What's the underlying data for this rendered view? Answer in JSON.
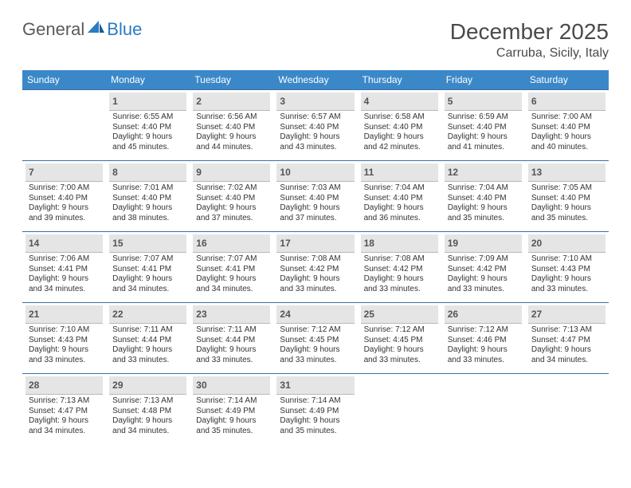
{
  "logo": {
    "general": "General",
    "blue": "Blue"
  },
  "header": {
    "title": "December 2025",
    "location": "Carruba, Sicily, Italy"
  },
  "colors": {
    "header_bg": "#3b88c9",
    "header_text": "#ffffff",
    "daynum_bg": "#e5e5e5",
    "cell_border": "#3b6ea0",
    "logo_blue": "#2a7bc4"
  },
  "days_of_week": [
    "Sunday",
    "Monday",
    "Tuesday",
    "Wednesday",
    "Thursday",
    "Friday",
    "Saturday"
  ],
  "start_offset": 1,
  "cells": [
    {
      "n": 1,
      "sr": "6:55 AM",
      "ss": "4:40 PM",
      "dl": "9 hours and 45 minutes."
    },
    {
      "n": 2,
      "sr": "6:56 AM",
      "ss": "4:40 PM",
      "dl": "9 hours and 44 minutes."
    },
    {
      "n": 3,
      "sr": "6:57 AM",
      "ss": "4:40 PM",
      "dl": "9 hours and 43 minutes."
    },
    {
      "n": 4,
      "sr": "6:58 AM",
      "ss": "4:40 PM",
      "dl": "9 hours and 42 minutes."
    },
    {
      "n": 5,
      "sr": "6:59 AM",
      "ss": "4:40 PM",
      "dl": "9 hours and 41 minutes."
    },
    {
      "n": 6,
      "sr": "7:00 AM",
      "ss": "4:40 PM",
      "dl": "9 hours and 40 minutes."
    },
    {
      "n": 7,
      "sr": "7:00 AM",
      "ss": "4:40 PM",
      "dl": "9 hours and 39 minutes."
    },
    {
      "n": 8,
      "sr": "7:01 AM",
      "ss": "4:40 PM",
      "dl": "9 hours and 38 minutes."
    },
    {
      "n": 9,
      "sr": "7:02 AM",
      "ss": "4:40 PM",
      "dl": "9 hours and 37 minutes."
    },
    {
      "n": 10,
      "sr": "7:03 AM",
      "ss": "4:40 PM",
      "dl": "9 hours and 37 minutes."
    },
    {
      "n": 11,
      "sr": "7:04 AM",
      "ss": "4:40 PM",
      "dl": "9 hours and 36 minutes."
    },
    {
      "n": 12,
      "sr": "7:04 AM",
      "ss": "4:40 PM",
      "dl": "9 hours and 35 minutes."
    },
    {
      "n": 13,
      "sr": "7:05 AM",
      "ss": "4:40 PM",
      "dl": "9 hours and 35 minutes."
    },
    {
      "n": 14,
      "sr": "7:06 AM",
      "ss": "4:41 PM",
      "dl": "9 hours and 34 minutes."
    },
    {
      "n": 15,
      "sr": "7:07 AM",
      "ss": "4:41 PM",
      "dl": "9 hours and 34 minutes."
    },
    {
      "n": 16,
      "sr": "7:07 AM",
      "ss": "4:41 PM",
      "dl": "9 hours and 34 minutes."
    },
    {
      "n": 17,
      "sr": "7:08 AM",
      "ss": "4:42 PM",
      "dl": "9 hours and 33 minutes."
    },
    {
      "n": 18,
      "sr": "7:08 AM",
      "ss": "4:42 PM",
      "dl": "9 hours and 33 minutes."
    },
    {
      "n": 19,
      "sr": "7:09 AM",
      "ss": "4:42 PM",
      "dl": "9 hours and 33 minutes."
    },
    {
      "n": 20,
      "sr": "7:10 AM",
      "ss": "4:43 PM",
      "dl": "9 hours and 33 minutes."
    },
    {
      "n": 21,
      "sr": "7:10 AM",
      "ss": "4:43 PM",
      "dl": "9 hours and 33 minutes."
    },
    {
      "n": 22,
      "sr": "7:11 AM",
      "ss": "4:44 PM",
      "dl": "9 hours and 33 minutes."
    },
    {
      "n": 23,
      "sr": "7:11 AM",
      "ss": "4:44 PM",
      "dl": "9 hours and 33 minutes."
    },
    {
      "n": 24,
      "sr": "7:12 AM",
      "ss": "4:45 PM",
      "dl": "9 hours and 33 minutes."
    },
    {
      "n": 25,
      "sr": "7:12 AM",
      "ss": "4:45 PM",
      "dl": "9 hours and 33 minutes."
    },
    {
      "n": 26,
      "sr": "7:12 AM",
      "ss": "4:46 PM",
      "dl": "9 hours and 33 minutes."
    },
    {
      "n": 27,
      "sr": "7:13 AM",
      "ss": "4:47 PM",
      "dl": "9 hours and 34 minutes."
    },
    {
      "n": 28,
      "sr": "7:13 AM",
      "ss": "4:47 PM",
      "dl": "9 hours and 34 minutes."
    },
    {
      "n": 29,
      "sr": "7:13 AM",
      "ss": "4:48 PM",
      "dl": "9 hours and 34 minutes."
    },
    {
      "n": 30,
      "sr": "7:14 AM",
      "ss": "4:49 PM",
      "dl": "9 hours and 35 minutes."
    },
    {
      "n": 31,
      "sr": "7:14 AM",
      "ss": "4:49 PM",
      "dl": "9 hours and 35 minutes."
    }
  ],
  "labels": {
    "sunrise": "Sunrise:",
    "sunset": "Sunset:",
    "daylight": "Daylight:"
  }
}
